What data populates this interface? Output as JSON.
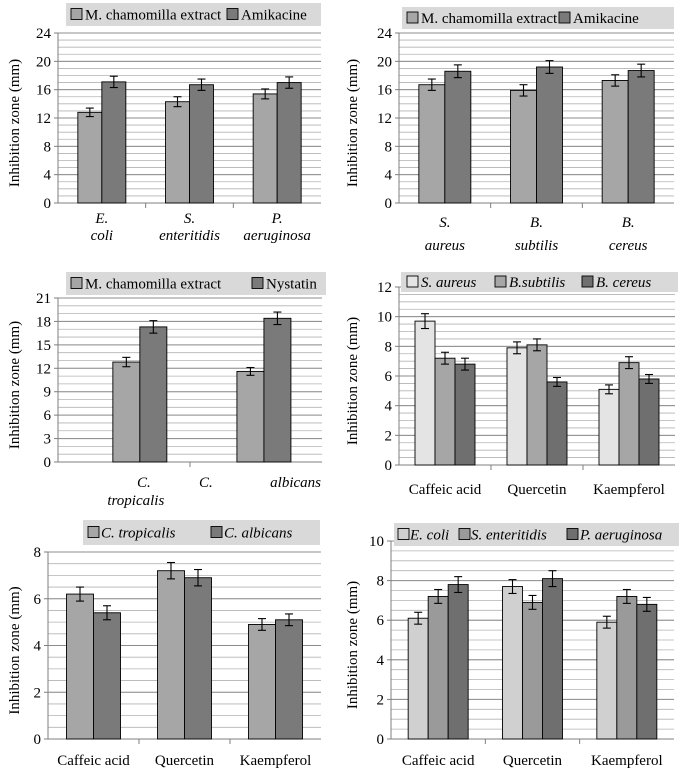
{
  "chart_data": [
    {
      "type": "bar",
      "ylabel": "Inhibition zone (mm)",
      "ylim": [
        0,
        24
      ],
      "yticks": [
        0,
        4,
        8,
        12,
        16,
        20,
        24
      ],
      "ytick_labels": [
        "0",
        "4",
        "8",
        "12",
        "16",
        "20",
        "24"
      ],
      "minor_step": 1,
      "categories": [
        "E. coli",
        "S. enteritidis",
        "P. aeruginosa"
      ],
      "category_lines": [
        [
          "E.",
          "coli"
        ],
        [
          "S.",
          "enteritidis"
        ],
        [
          "P.",
          "aeruginosa"
        ]
      ],
      "italic_categories": true,
      "series": [
        {
          "name": "M. chamomilla extract",
          "color": "#a6a6a6",
          "values": [
            12.8,
            14.3,
            15.4
          ],
          "errors": [
            0.6,
            0.7,
            0.7
          ]
        },
        {
          "name": "Amikacine",
          "color": "#7a7a7a",
          "values": [
            17.1,
            16.7,
            17.0
          ],
          "errors": [
            0.8,
            0.8,
            0.8
          ]
        }
      ]
    },
    {
      "type": "bar",
      "ylabel": "Inhibition zone (mm)",
      "ylim": [
        0,
        24
      ],
      "yticks": [
        0,
        4,
        8,
        12,
        16,
        20,
        24
      ],
      "ytick_labels": [
        "0",
        "4",
        "8",
        "12",
        "16",
        "20",
        "24"
      ],
      "minor_step": 1,
      "categories": [
        "S. aureus",
        "B. subtilis",
        "B. cereus"
      ],
      "category_lines": [
        [
          "S.",
          "aureus"
        ],
        [
          "B.",
          "subtilis"
        ],
        [
          "B.",
          "cereus"
        ]
      ],
      "italic_categories": true,
      "series": [
        {
          "name": "M. chamomilla extract",
          "color": "#a6a6a6",
          "values": [
            16.7,
            15.9,
            17.3
          ],
          "errors": [
            0.8,
            0.8,
            0.8
          ]
        },
        {
          "name": "Amikacine",
          "color": "#7a7a7a",
          "values": [
            18.6,
            19.2,
            18.7
          ],
          "errors": [
            0.9,
            0.9,
            0.9
          ]
        }
      ]
    },
    {
      "type": "bar",
      "ylabel": "Inhibition zone (mm)",
      "ylim": [
        0,
        21
      ],
      "yticks": [
        0,
        3,
        6,
        9,
        12,
        15,
        18,
        21
      ],
      "ytick_labels": [
        "0",
        "3",
        "6",
        "9",
        "12",
        "15",
        "18",
        "21"
      ],
      "minor_step": 1,
      "categories": [
        "C. tropicalis",
        "C. albicans"
      ],
      "category_lines": [
        [
          "C.",
          "tropicalis"
        ],
        [
          "C.",
          "albicans"
        ]
      ],
      "italic_categories": true,
      "series": [
        {
          "name": "M. chamomilla extract",
          "color": "#a6a6a6",
          "values": [
            12.8,
            11.6
          ],
          "errors": [
            0.6,
            0.5
          ]
        },
        {
          "name": "Nystatin",
          "color": "#7a7a7a",
          "values": [
            17.3,
            18.4
          ],
          "errors": [
            0.8,
            0.8
          ]
        }
      ]
    },
    {
      "type": "bar",
      "ylabel": "Inhibition zone (mm)",
      "ylim": [
        0,
        12
      ],
      "yticks": [
        0,
        2,
        4,
        6,
        8,
        10,
        12
      ],
      "ytick_labels": [
        "0",
        "2",
        "4",
        "6",
        "8",
        "10",
        "12"
      ],
      "minor_step": 0.5,
      "categories": [
        "Caffeic acid",
        "Quercetin",
        "Kaempferol"
      ],
      "category_lines": [
        [
          "Caffeic acid"
        ],
        [
          "Quercetin"
        ],
        [
          "Kaempferol"
        ]
      ],
      "italic_categories": false,
      "series": [
        {
          "name": "S. aureus",
          "color": "#e4e4e4",
          "values": [
            9.7,
            7.9,
            5.1
          ],
          "errors": [
            0.5,
            0.4,
            0.3
          ]
        },
        {
          "name": "B.subtilis",
          "color": "#a6a6a6",
          "values": [
            7.2,
            8.1,
            6.9
          ],
          "errors": [
            0.4,
            0.4,
            0.4
          ]
        },
        {
          "name": "B. cereus",
          "color": "#6f6f6f",
          "values": [
            6.8,
            5.6,
            5.8
          ],
          "errors": [
            0.4,
            0.3,
            0.3
          ]
        }
      ]
    },
    {
      "type": "bar",
      "ylabel": "Inhibition zone (mm)",
      "ylim": [
        0,
        8
      ],
      "yticks": [
        0,
        2,
        4,
        6,
        8
      ],
      "ytick_labels": [
        "0",
        "2",
        "4",
        "6",
        "8"
      ],
      "minor_step": 0.5,
      "categories": [
        "Caffeic acid",
        "Quercetin",
        "Kaempferol"
      ],
      "category_lines": [
        [
          "Caffeic acid"
        ],
        [
          "Quercetin"
        ],
        [
          "Kaempferol"
        ]
      ],
      "italic_categories": false,
      "series": [
        {
          "name": "C. tropicalis",
          "color": "#a6a6a6",
          "values": [
            6.2,
            7.2,
            4.9
          ],
          "errors": [
            0.3,
            0.35,
            0.25
          ]
        },
        {
          "name": "C. albicans",
          "color": "#7a7a7a",
          "values": [
            5.4,
            6.9,
            5.1
          ],
          "errors": [
            0.3,
            0.35,
            0.25
          ]
        }
      ]
    },
    {
      "type": "bar",
      "ylabel": "Inhibition zone (mm)",
      "ylim": [
        0,
        10
      ],
      "yticks": [
        0,
        2,
        4,
        6,
        8,
        10
      ],
      "ytick_labels": [
        "0",
        "2",
        "4",
        "6",
        "8",
        "10"
      ],
      "minor_step": 0.5,
      "categories": [
        "Caffeic acid",
        "Quercetin",
        "Kaempferol"
      ],
      "category_lines": [
        [
          "Caffeic acid"
        ],
        [
          "Quercetin"
        ],
        [
          "Kaempferol"
        ]
      ],
      "italic_categories": false,
      "series": [
        {
          "name": "E. coli",
          "color": "#d0d0d0",
          "values": [
            6.1,
            7.7,
            5.9
          ],
          "errors": [
            0.3,
            0.35,
            0.3
          ]
        },
        {
          "name": "S. enteritidis",
          "color": "#9a9a9a",
          "values": [
            7.2,
            6.9,
            7.2
          ],
          "errors": [
            0.35,
            0.35,
            0.35
          ]
        },
        {
          "name": "P. aeruginosa",
          "color": "#6f6f6f",
          "values": [
            7.8,
            8.1,
            6.8
          ],
          "errors": [
            0.4,
            0.4,
            0.35
          ]
        }
      ]
    }
  ]
}
